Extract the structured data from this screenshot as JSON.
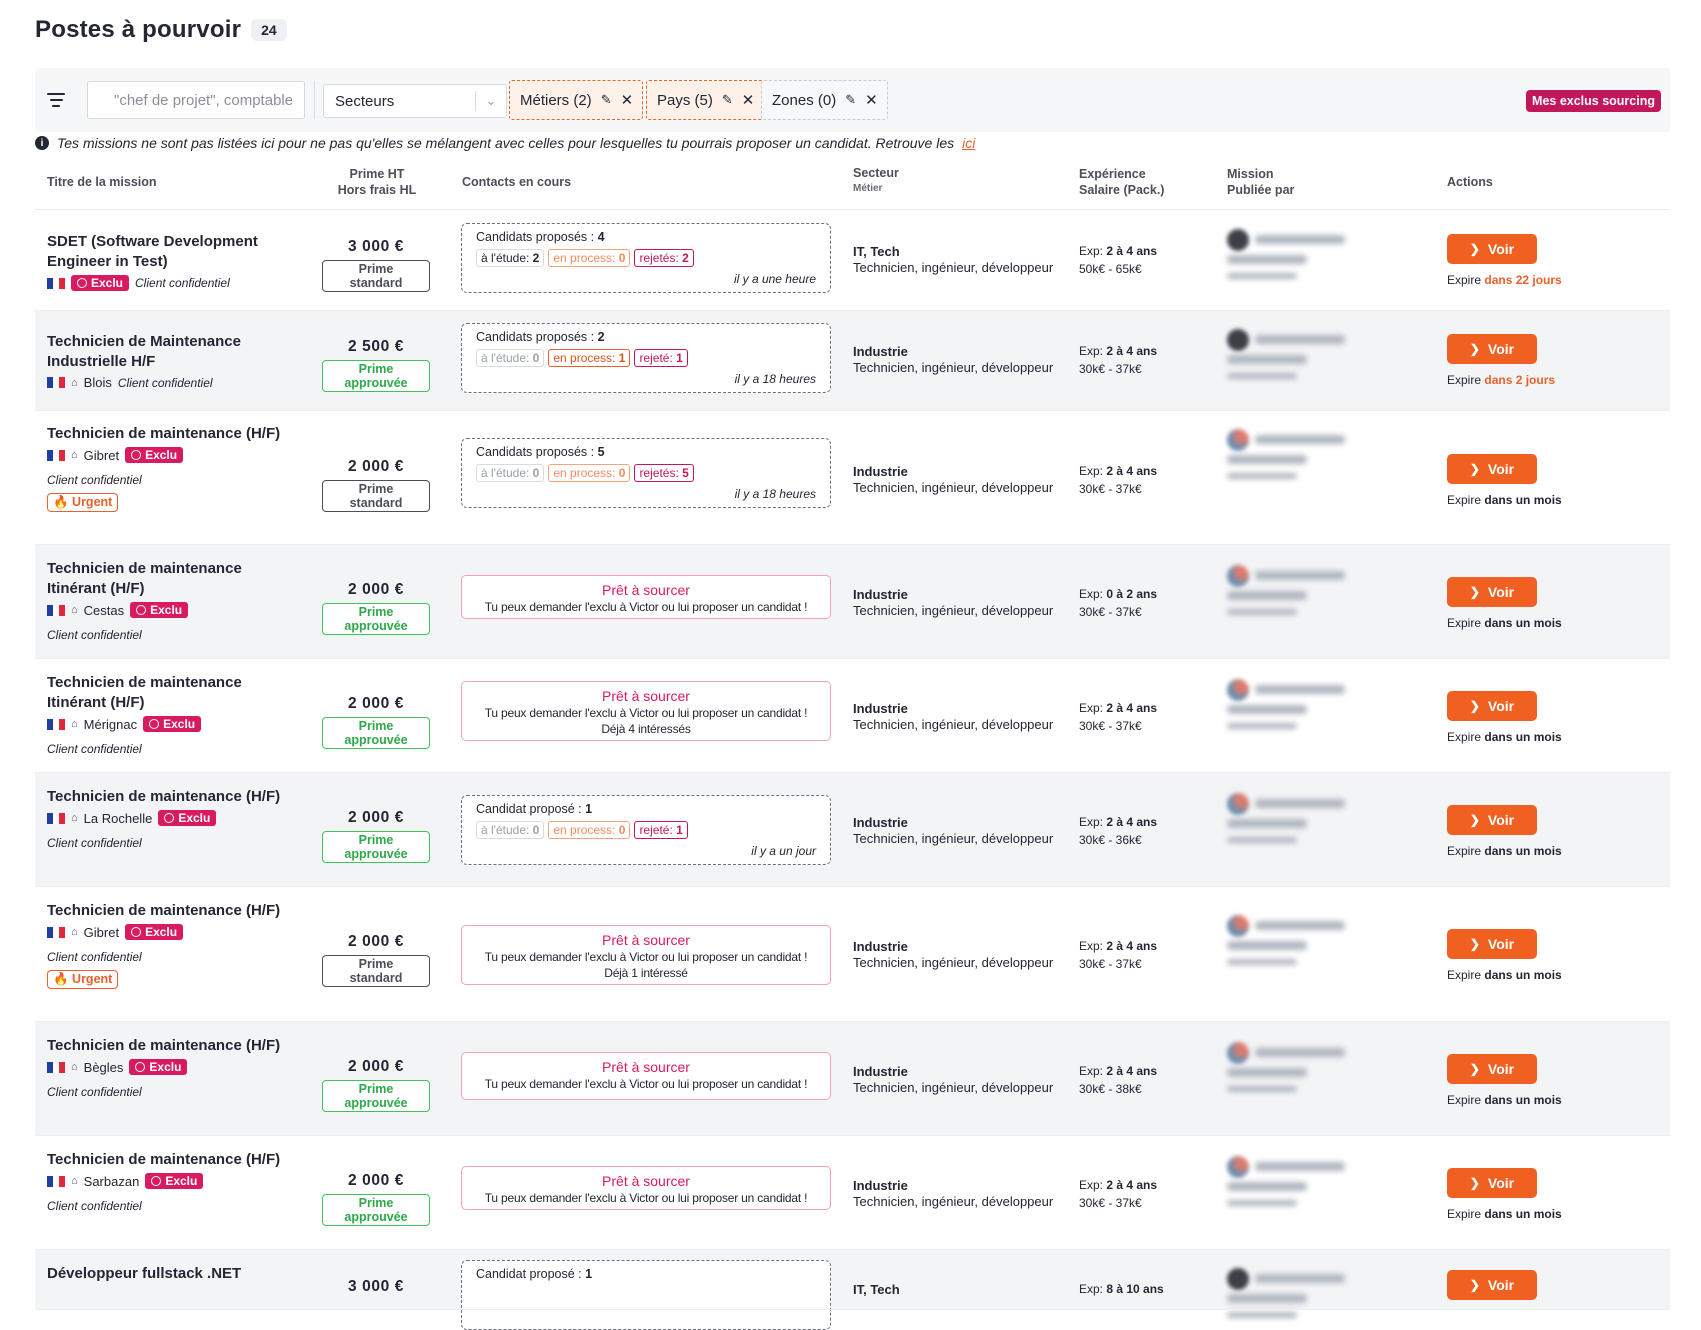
{
  "header": {
    "title": "Postes à pourvoir",
    "count": "24"
  },
  "filters": {
    "search_placeholder": "\"chef de projet\", comptable…",
    "sector_select": "Secteurs",
    "chips": [
      {
        "label": "Métiers (2)",
        "style": "active"
      },
      {
        "label": "Pays (5)",
        "style": "active"
      },
      {
        "label": "Zones (0)",
        "style": "neutral"
      }
    ],
    "exclus_button": "Mes exclus sourcing"
  },
  "info": {
    "text": "Tes missions ne sont pas listées ici pour ne pas qu'elles se mélangent avec celles pour lesquelles tu pourrais proposer un candidat. Retrouve les",
    "link": "ici"
  },
  "table": {
    "headers": {
      "title": "Titre de la mission",
      "prime": "Prime HT",
      "prime_sub": "Hors frais HL",
      "contacts": "Contacts en cours",
      "sector": "Secteur",
      "sector_sub": "Métier",
      "exp": "Expérience",
      "exp_sub": "Salaire (Pack.)",
      "mission": "Mission",
      "mission_sub": "Publiée par",
      "actions": "Actions"
    },
    "rows": [
      {
        "title": "SDET (Software Development Engineer in Test)",
        "city": "",
        "exclu": "Exclu",
        "client": "Client confidentiel",
        "urgent": "",
        "prime": "3 000 €",
        "prime_tag": "Prime standard",
        "contacts": {
          "type": "box",
          "title": "Candidats proposés :",
          "count": "4",
          "etude": "à l'étude:",
          "etude_n": "2",
          "process": "en process:",
          "process_n": "0",
          "rej": "rejetés:",
          "rej_n": "2",
          "time": "il y a une heure"
        },
        "sector": "IT, Tech",
        "job": "Technicien, ingénieur, développeur",
        "exp_label": "Exp:",
        "exp": "2 à 4 ans",
        "salary": "50k€ - 65k€",
        "voir": "Voir",
        "expire_label": "Expire",
        "expire": "dans 22 jours"
      },
      {
        "title": "Technicien de Maintenance Industrielle H/F",
        "city": "Blois",
        "exclu": "",
        "client": "Client confidentiel",
        "urgent": "",
        "prime": "2 500 €",
        "prime_tag": "Prime approuvée",
        "contacts": {
          "type": "box",
          "title": "Candidats proposés :",
          "count": "2",
          "etude": "à l'étude:",
          "etude_n": "0",
          "process": "en process:",
          "process_n": "1",
          "rej": "rejeté:",
          "rej_n": "1",
          "time": "il y a 18 heures"
        },
        "sector": "Industrie",
        "job": "Technicien, ingénieur, développeur",
        "exp_label": "Exp:",
        "exp": "2 à 4 ans",
        "salary": "30k€ - 37k€",
        "voir": "Voir",
        "expire_label": "Expire",
        "expire": "dans 2 jours"
      },
      {
        "title": "Technicien de maintenance (H/F)",
        "city": "Gibret",
        "exclu": "Exclu",
        "client": "Client confidentiel",
        "urgent": "🔥 Urgent",
        "prime": "2 000 €",
        "prime_tag": "Prime standard",
        "contacts": {
          "type": "box",
          "title": "Candidats proposés :",
          "count": "5",
          "etude": "à l'étude:",
          "etude_n": "0",
          "process": "en process:",
          "process_n": "0",
          "rej": "rejetés:",
          "rej_n": "5",
          "time": "il y a 18 heures"
        },
        "sector": "Industrie",
        "job": "Technicien, ingénieur, développeur",
        "exp_label": "Exp:",
        "exp": "2 à 4 ans",
        "salary": "30k€ - 37k€",
        "voir": "Voir",
        "expire_label": "Expire",
        "expire": "dans un mois"
      },
      {
        "title": "Technicien de maintenance Itinérant (H/F)",
        "city": "Cestas",
        "exclu": "Exclu",
        "client": "Client confidentiel",
        "urgent": "",
        "prime": "2 000 €",
        "prime_tag": "Prime approuvée",
        "contacts": {
          "type": "ready",
          "title": "Prêt à sourcer",
          "text": "Tu peux demander l'exclu à Victor ou lui proposer un candidat !",
          "extra": ""
        },
        "sector": "Industrie",
        "job": "Technicien, ingénieur, développeur",
        "exp_label": "Exp:",
        "exp": "0 à 2 ans",
        "salary": "30k€ - 37k€",
        "voir": "Voir",
        "expire_label": "Expire",
        "expire": "dans un mois"
      },
      {
        "title": "Technicien de maintenance Itinérant (H/F)",
        "city": "Mérignac",
        "exclu": "Exclu",
        "client": "Client confidentiel",
        "urgent": "",
        "prime": "2 000 €",
        "prime_tag": "Prime approuvée",
        "contacts": {
          "type": "ready",
          "title": "Prêt à sourcer",
          "text": "Tu peux demander l'exclu à Victor ou lui proposer un candidat !",
          "extra": "Déjà 4 intéressés"
        },
        "sector": "Industrie",
        "job": "Technicien, ingénieur, développeur",
        "exp_label": "Exp:",
        "exp": "2 à 4 ans",
        "salary": "30k€ - 37k€",
        "voir": "Voir",
        "expire_label": "Expire",
        "expire": "dans un mois"
      },
      {
        "title": "Technicien de maintenance (H/F)",
        "city": "La Rochelle",
        "exclu": "Exclu",
        "client": "Client confidentiel",
        "urgent": "",
        "prime": "2 000 €",
        "prime_tag": "Prime approuvée",
        "contacts": {
          "type": "box",
          "title": "Candidat proposé :",
          "count": "1",
          "etude": "à l'étude:",
          "etude_n": "0",
          "process": "en process:",
          "process_n": "0",
          "rej": "rejeté:",
          "rej_n": "1",
          "time": "il y a un jour"
        },
        "sector": "Industrie",
        "job": "Technicien, ingénieur, développeur",
        "exp_label": "Exp:",
        "exp": "2 à 4 ans",
        "salary": "30k€ - 36k€",
        "voir": "Voir",
        "expire_label": "Expire",
        "expire": "dans un mois"
      },
      {
        "title": "Technicien de maintenance (H/F)",
        "city": "Gibret",
        "exclu": "Exclu",
        "client": "Client confidentiel",
        "urgent": "🔥 Urgent",
        "prime": "2 000 €",
        "prime_tag": "Prime standard",
        "contacts": {
          "type": "ready",
          "title": "Prêt à sourcer",
          "text": "Tu peux demander l'exclu à Victor ou lui proposer un candidat !",
          "extra": "Déjà 1 intéressé"
        },
        "sector": "Industrie",
        "job": "Technicien, ingénieur, développeur",
        "exp_label": "Exp:",
        "exp": "2 à 4 ans",
        "salary": "30k€ - 37k€",
        "voir": "Voir",
        "expire_label": "Expire",
        "expire": "dans un mois"
      },
      {
        "title": "Technicien de maintenance (H/F)",
        "city": "Bègles",
        "exclu": "Exclu",
        "client": "Client confidentiel",
        "urgent": "",
        "prime": "2 000 €",
        "prime_tag": "Prime approuvée",
        "contacts": {
          "type": "ready",
          "title": "Prêt à sourcer",
          "text": "Tu peux demander l'exclu à Victor ou lui proposer un candidat !",
          "extra": ""
        },
        "sector": "Industrie",
        "job": "Technicien, ingénieur, développeur",
        "exp_label": "Exp:",
        "exp": "2 à 4 ans",
        "salary": "30k€ - 38k€",
        "voir": "Voir",
        "expire_label": "Expire",
        "expire": "dans un mois"
      },
      {
        "title": "Technicien de maintenance (H/F)",
        "city": "Sarbazan",
        "exclu": "Exclu",
        "client": "Client confidentiel",
        "urgent": "",
        "prime": "2 000 €",
        "prime_tag": "Prime approuvée",
        "contacts": {
          "type": "ready",
          "title": "Prêt à sourcer",
          "text": "Tu peux demander l'exclu à Victor ou lui proposer un candidat !",
          "extra": ""
        },
        "sector": "Industrie",
        "job": "Technicien, ingénieur, développeur",
        "exp_label": "Exp:",
        "exp": "2 à 4 ans",
        "salary": "30k€ - 37k€",
        "voir": "Voir",
        "expire_label": "Expire",
        "expire": "dans un mois"
      },
      {
        "title": "Développeur fullstack .NET",
        "city": "",
        "exclu": "",
        "client": "",
        "urgent": "",
        "prime": "3 000 €",
        "prime_tag": "",
        "contacts": {
          "type": "box",
          "title": "Candidat proposé :",
          "count": "1",
          "etude": "",
          "etude_n": "",
          "process": "",
          "process_n": "",
          "rej": "",
          "rej_n": "",
          "time": ""
        },
        "sector": "IT, Tech",
        "job": "",
        "exp_label": "Exp:",
        "exp": "8 à 10 ans",
        "salary": "",
        "voir": "Voir",
        "expire_label": "",
        "expire": ""
      }
    ]
  },
  "colors": {
    "accent": "#f06020",
    "exclu": "#d81b60",
    "approved": "#3ec35b",
    "filter_bg": "#f6f7f9"
  },
  "icons": [
    "filter-icon",
    "undo-icon",
    "pencil-icon",
    "close-icon",
    "chevron-down-icon",
    "info-icon",
    "flag-fr-icon",
    "building-icon",
    "chevron-right-icon",
    "fire-icon"
  ]
}
